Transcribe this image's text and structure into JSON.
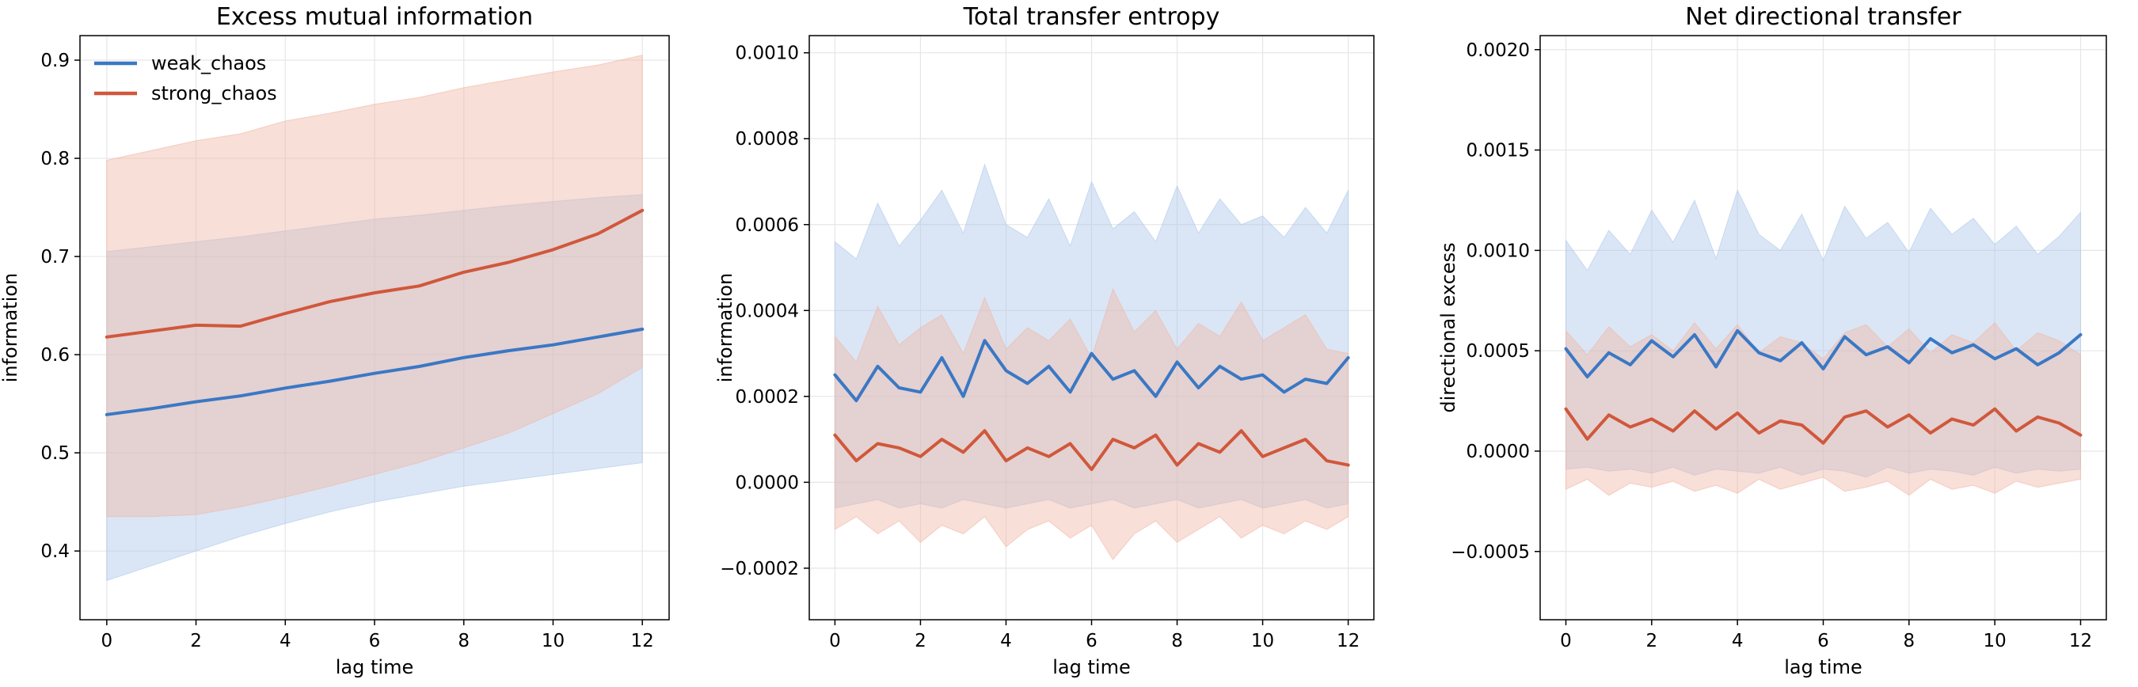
{
  "colors": {
    "weak_chaos": "#3a78c4",
    "strong_chaos": "#d0583b",
    "weak_chaos_band": "#aec8ea",
    "strong_chaos_band": "#f0b7a6",
    "grid": "#e6e6e6",
    "axis": "#000000"
  },
  "chart_data": [
    {
      "type": "line",
      "title": "Excess mutual information",
      "xlabel": "lag time",
      "ylabel": "information",
      "xlim": [
        -0.6,
        12.6
      ],
      "ylim": [
        0.33,
        0.925
      ],
      "xticks": [
        0,
        2,
        4,
        6,
        8,
        10,
        12
      ],
      "xtick_labels": [
        "0",
        "2",
        "4",
        "6",
        "8",
        "10",
        "12"
      ],
      "yticks": [
        0.4,
        0.5,
        0.6,
        0.7,
        0.8,
        0.9
      ],
      "ytick_labels": [
        "0.4",
        "0.5",
        "0.6",
        "0.7",
        "0.8",
        "0.9"
      ],
      "grid": true,
      "legend_position": "upper-left",
      "legend": [
        "weak_chaos",
        "strong_chaos"
      ],
      "x": [
        0,
        1,
        2,
        3,
        4,
        5,
        6,
        7,
        8,
        9,
        10,
        11,
        12
      ],
      "series": [
        {
          "name": "weak_chaos",
          "color": "#3a78c4",
          "mean": [
            0.539,
            0.545,
            0.552,
            0.558,
            0.566,
            0.573,
            0.581,
            0.588,
            0.597,
            0.604,
            0.61,
            0.618,
            0.626
          ],
          "lower": [
            0.37,
            0.385,
            0.4,
            0.415,
            0.428,
            0.44,
            0.45,
            0.458,
            0.466,
            0.472,
            0.478,
            0.484,
            0.49
          ],
          "upper": [
            0.705,
            0.71,
            0.715,
            0.72,
            0.726,
            0.732,
            0.738,
            0.742,
            0.747,
            0.752,
            0.756,
            0.76,
            0.763
          ]
        },
        {
          "name": "strong_chaos",
          "color": "#d0583b",
          "mean": [
            0.618,
            0.624,
            0.63,
            0.629,
            0.642,
            0.654,
            0.663,
            0.67,
            0.684,
            0.694,
            0.707,
            0.723,
            0.747
          ],
          "lower": [
            0.435,
            0.435,
            0.437,
            0.445,
            0.455,
            0.466,
            0.478,
            0.49,
            0.505,
            0.52,
            0.54,
            0.56,
            0.587
          ],
          "upper": [
            0.798,
            0.808,
            0.818,
            0.825,
            0.838,
            0.846,
            0.855,
            0.862,
            0.872,
            0.88,
            0.888,
            0.895,
            0.905
          ]
        }
      ]
    },
    {
      "type": "line",
      "title": "Total transfer entropy",
      "xlabel": "lag time",
      "ylabel": "information",
      "xlim": [
        -0.6,
        12.6
      ],
      "ylim": [
        -0.00032,
        0.00104
      ],
      "xticks": [
        0,
        2,
        4,
        6,
        8,
        10,
        12
      ],
      "xtick_labels": [
        "0",
        "2",
        "4",
        "6",
        "8",
        "10",
        "12"
      ],
      "yticks": [
        -0.0002,
        0.0,
        0.0002,
        0.0004,
        0.0006,
        0.0008,
        0.001
      ],
      "ytick_labels": [
        "−0.0002",
        "0.0000",
        "0.0002",
        "0.0004",
        "0.0006",
        "0.0008",
        "0.0010"
      ],
      "grid": true,
      "x": [
        0.0,
        0.5,
        1.0,
        1.5,
        2.0,
        2.5,
        3.0,
        3.5,
        4.0,
        4.5,
        5.0,
        5.5,
        6.0,
        6.5,
        7.0,
        7.5,
        8.0,
        8.5,
        9.0,
        9.5,
        10.0,
        10.5,
        11.0,
        11.5,
        12.0
      ],
      "series": [
        {
          "name": "weak_chaos",
          "color": "#3a78c4",
          "mean": [
            0.00025,
            0.00019,
            0.00027,
            0.00022,
            0.00021,
            0.00029,
            0.0002,
            0.00033,
            0.00026,
            0.00023,
            0.00027,
            0.00021,
            0.0003,
            0.00024,
            0.00026,
            0.0002,
            0.00028,
            0.00022,
            0.00027,
            0.00024,
            0.00025,
            0.00021,
            0.00024,
            0.00023,
            0.00029
          ],
          "lower": [
            -6e-05,
            -5e-05,
            -4e-05,
            -6e-05,
            -5e-05,
            -6e-05,
            -4e-05,
            -5e-05,
            -6e-05,
            -5e-05,
            -4e-05,
            -6e-05,
            -5e-05,
            -4e-05,
            -6e-05,
            -5e-05,
            -4e-05,
            -6e-05,
            -5e-05,
            -4e-05,
            -6e-05,
            -5e-05,
            -4e-05,
            -6e-05,
            -5e-05
          ],
          "upper": [
            0.00056,
            0.00052,
            0.00065,
            0.00055,
            0.00061,
            0.00068,
            0.00058,
            0.00074,
            0.0006,
            0.00057,
            0.00066,
            0.00055,
            0.0007,
            0.00059,
            0.00063,
            0.00056,
            0.00069,
            0.00058,
            0.00066,
            0.0006,
            0.00062,
            0.00057,
            0.00064,
            0.00058,
            0.00068
          ]
        },
        {
          "name": "strong_chaos",
          "color": "#d0583b",
          "mean": [
            0.00011,
            5e-05,
            9e-05,
            8e-05,
            6e-05,
            0.0001,
            7e-05,
            0.00012,
            5e-05,
            8e-05,
            6e-05,
            9e-05,
            3e-05,
            0.0001,
            8e-05,
            0.00011,
            4e-05,
            9e-05,
            7e-05,
            0.00012,
            6e-05,
            8e-05,
            0.0001,
            5e-05,
            4e-05
          ],
          "lower": [
            -0.00011,
            -8e-05,
            -0.00012,
            -9e-05,
            -0.00014,
            -0.0001,
            -0.00012,
            -8e-05,
            -0.00015,
            -0.00011,
            -9e-05,
            -0.00013,
            -0.0001,
            -0.00018,
            -0.00012,
            -9e-05,
            -0.00014,
            -0.00011,
            -8e-05,
            -0.00013,
            -0.0001,
            -0.00012,
            -9e-05,
            -0.00011,
            -8e-05
          ],
          "upper": [
            0.00034,
            0.00028,
            0.00041,
            0.00032,
            0.00036,
            0.00039,
            0.0003,
            0.00043,
            0.00031,
            0.00036,
            0.00033,
            0.00038,
            0.00029,
            0.00045,
            0.00035,
            0.0004,
            0.00031,
            0.00037,
            0.00034,
            0.00042,
            0.00033,
            0.00036,
            0.00039,
            0.00031,
            0.0003
          ]
        }
      ]
    },
    {
      "type": "line",
      "title": "Net directional transfer",
      "xlabel": "lag time",
      "ylabel": "directional excess",
      "xlim": [
        -0.6,
        12.6
      ],
      "ylim": [
        -0.00084,
        0.00207
      ],
      "xticks": [
        0,
        2,
        4,
        6,
        8,
        10,
        12
      ],
      "xtick_labels": [
        "0",
        "2",
        "4",
        "6",
        "8",
        "10",
        "12"
      ],
      "yticks": [
        -0.0005,
        0.0,
        0.0005,
        0.001,
        0.0015,
        0.002
      ],
      "ytick_labels": [
        "−0.0005",
        "0.0000",
        "0.0005",
        "0.0010",
        "0.0015",
        "0.0020"
      ],
      "grid": true,
      "x": [
        0.0,
        0.5,
        1.0,
        1.5,
        2.0,
        2.5,
        3.0,
        3.5,
        4.0,
        4.5,
        5.0,
        5.5,
        6.0,
        6.5,
        7.0,
        7.5,
        8.0,
        8.5,
        9.0,
        9.5,
        10.0,
        10.5,
        11.0,
        11.5,
        12.0
      ],
      "series": [
        {
          "name": "weak_chaos",
          "color": "#3a78c4",
          "mean": [
            0.00051,
            0.00037,
            0.00049,
            0.00043,
            0.00055,
            0.00047,
            0.00058,
            0.00042,
            0.0006,
            0.00049,
            0.00045,
            0.00054,
            0.00041,
            0.00057,
            0.00048,
            0.00052,
            0.00044,
            0.00056,
            0.00049,
            0.00053,
            0.00046,
            0.00051,
            0.00043,
            0.00049,
            0.00058
          ],
          "lower": [
            -9e-05,
            -8e-05,
            -0.0001,
            -9e-05,
            -0.00011,
            -8e-05,
            -0.00012,
            -9e-05,
            -0.0001,
            -0.00011,
            -8e-05,
            -0.00012,
            -9e-05,
            -0.0001,
            -0.00013,
            -8e-05,
            -0.00011,
            -9e-05,
            -0.0001,
            -0.00012,
            -8e-05,
            -0.00011,
            -9e-05,
            -0.0001,
            -9e-05
          ],
          "upper": [
            0.00105,
            0.0009,
            0.0011,
            0.00098,
            0.0012,
            0.00104,
            0.00125,
            0.00096,
            0.0013,
            0.00108,
            0.001,
            0.00118,
            0.00095,
            0.00122,
            0.00106,
            0.00114,
            0.00099,
            0.00121,
            0.00108,
            0.00116,
            0.00103,
            0.00112,
            0.00098,
            0.00107,
            0.00119
          ]
        },
        {
          "name": "strong_chaos",
          "color": "#d0583b",
          "mean": [
            0.00021,
            6e-05,
            0.00018,
            0.00012,
            0.00016,
            0.0001,
            0.0002,
            0.00011,
            0.00019,
            9e-05,
            0.00015,
            0.00013,
            4e-05,
            0.00017,
            0.0002,
            0.00012,
            0.00018,
            9e-05,
            0.00016,
            0.00013,
            0.00021,
            0.0001,
            0.00017,
            0.00014,
            8e-05
          ],
          "lower": [
            -0.00019,
            -0.00014,
            -0.00022,
            -0.00016,
            -0.00018,
            -0.00015,
            -0.0002,
            -0.00017,
            -0.00021,
            -0.00014,
            -0.00019,
            -0.00016,
            -0.00013,
            -0.0002,
            -0.00018,
            -0.00015,
            -0.00022,
            -0.00014,
            -0.00019,
            -0.00017,
            -0.00021,
            -0.00015,
            -0.00018,
            -0.00016,
            -0.00014
          ],
          "upper": [
            0.0006,
            0.00048,
            0.00062,
            0.00052,
            0.00058,
            0.0005,
            0.00064,
            0.00051,
            0.00063,
            0.00049,
            0.00057,
            0.00054,
            0.00046,
            0.00059,
            0.00063,
            0.00052,
            0.00061,
            0.00049,
            0.00058,
            0.00054,
            0.00064,
            0.0005,
            0.00059,
            0.00055,
            0.00048
          ]
        }
      ]
    }
  ]
}
